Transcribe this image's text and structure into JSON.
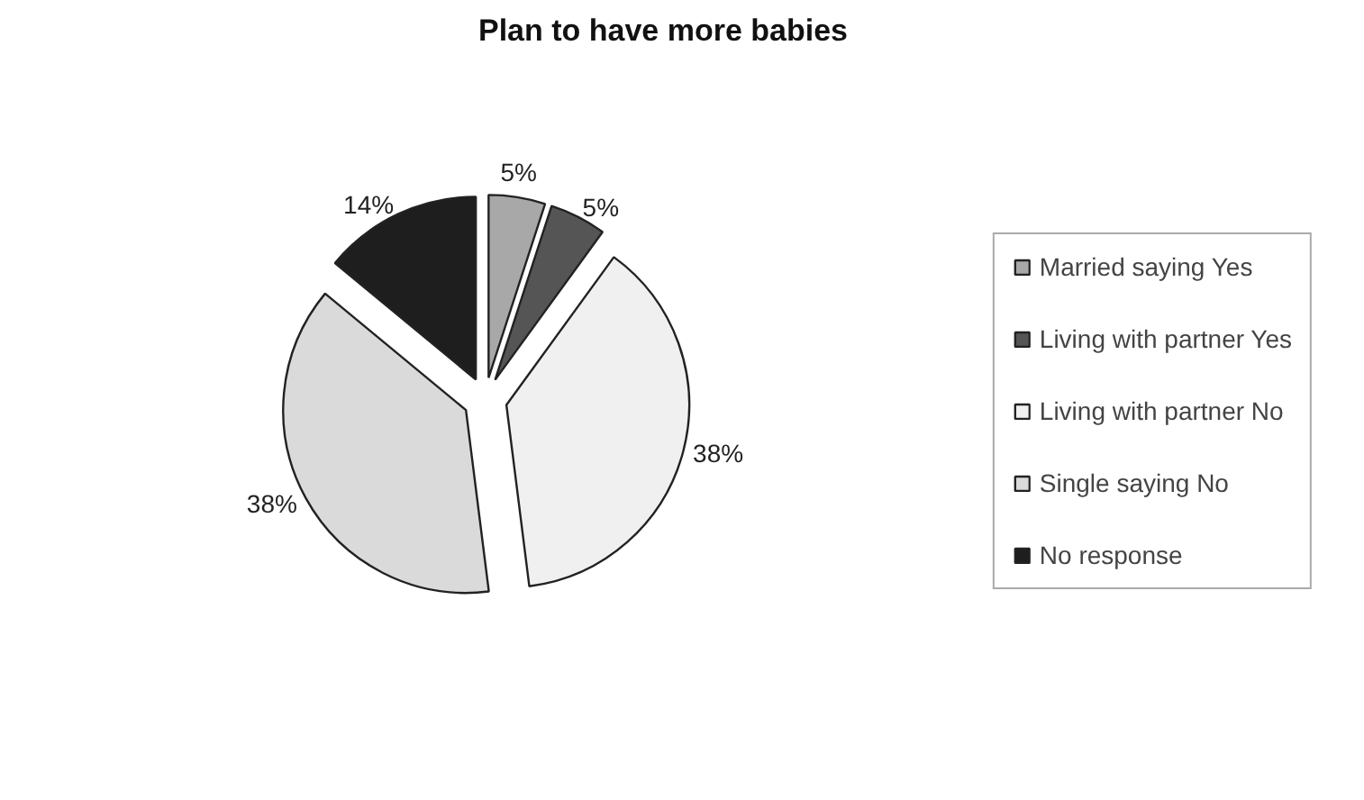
{
  "chart_data": {
    "type": "pie",
    "title": "Plan to have more babies",
    "categories": [
      "Married saying Yes",
      "Living with partner Yes",
      "Living with partner No",
      "Single saying No",
      "No response"
    ],
    "values": [
      5,
      5,
      38,
      38,
      14
    ],
    "colors": [
      "#a8a8a8",
      "#555555",
      "#f0f0f0",
      "#dadada",
      "#1e1e1e"
    ],
    "value_labels": [
      "5%",
      "5%",
      "38%",
      "38%",
      "14%"
    ],
    "legend": "right"
  }
}
